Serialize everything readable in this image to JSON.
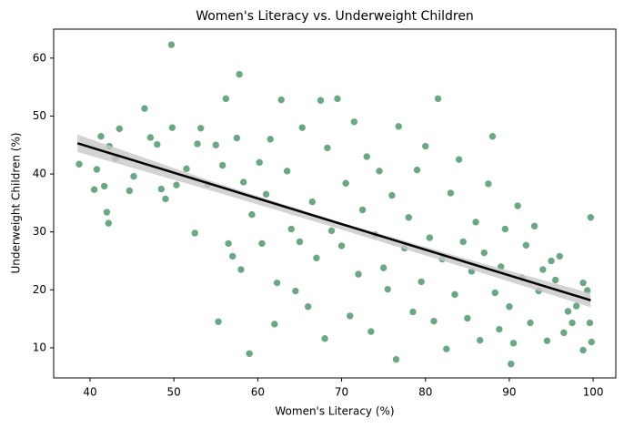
{
  "chart_data": {
    "type": "scatter",
    "title": "Women's Literacy vs. Underweight Children",
    "x_label": "Women's Literacy (%)",
    "y_label": "Underweight Children (%)",
    "color": "#5a9e75",
    "x": [
      38.7,
      40.5,
      40.8,
      41.3,
      41.7,
      42.0,
      42.2,
      42.3,
      43.0,
      43.5,
      44.7,
      45.2,
      46.5,
      47.2,
      48.0,
      48.5,
      49.0,
      49.7,
      49.8,
      50.3,
      51.5,
      52.5,
      52.8,
      53.2,
      54.0,
      55.0,
      55.3,
      55.8,
      56.2,
      56.5,
      57.0,
      57.5,
      57.8,
      58.0,
      58.3,
      59.0,
      59.3,
      60.2,
      60.5,
      61.0,
      61.5,
      62.0,
      62.3,
      62.8,
      63.5,
      64.0,
      64.5,
      65.0,
      65.3,
      66.0,
      66.5,
      67.0,
      67.5,
      68.0,
      68.3,
      68.8,
      69.5,
      70.0,
      70.5,
      71.0,
      71.5,
      72.0,
      72.5,
      73.0,
      73.5,
      74.0,
      74.5,
      75.0,
      75.5,
      76.0,
      76.5,
      76.8,
      77.5,
      78.0,
      78.5,
      79.0,
      79.5,
      80.0,
      80.5,
      81.0,
      81.5,
      82.0,
      82.5,
      83.0,
      83.5,
      84.0,
      84.5,
      85.0,
      85.5,
      86.0,
      86.5,
      87.0,
      87.5,
      88.0,
      88.3,
      88.8,
      89.0,
      89.5,
      90.0,
      90.2,
      90.5,
      91.0,
      91.5,
      92.0,
      92.5,
      93.0,
      93.5,
      94.0,
      94.5,
      95.0,
      95.5,
      96.0,
      96.5,
      97.0,
      97.5,
      98.0,
      98.8,
      98.8,
      99.3,
      99.6,
      99.7,
      99.8
    ],
    "values": [
      41.7,
      37.3,
      40.8,
      46.5,
      37.9,
      33.4,
      31.5,
      44.8,
      42.7,
      47.8,
      37.1,
      39.6,
      51.3,
      46.3,
      45.1,
      37.4,
      35.7,
      62.3,
      48.0,
      38.1,
      40.9,
      29.8,
      45.2,
      47.9,
      38.2,
      45.0,
      14.5,
      41.5,
      53.0,
      28.0,
      25.8,
      46.2,
      57.2,
      23.5,
      38.6,
      9.0,
      33.0,
      42.0,
      28.0,
      36.5,
      46.0,
      14.1,
      21.2,
      52.8,
      40.5,
      30.5,
      19.8,
      28.3,
      48.0,
      17.1,
      35.2,
      25.5,
      52.7,
      11.6,
      44.5,
      30.2,
      53.0,
      27.6,
      38.4,
      15.5,
      49.0,
      22.7,
      33.8,
      43.0,
      12.8,
      29.5,
      40.5,
      23.8,
      20.1,
      36.3,
      8.0,
      48.2,
      27.2,
      32.5,
      16.2,
      40.7,
      21.4,
      44.8,
      29.0,
      14.6,
      53.0,
      25.3,
      9.8,
      36.7,
      19.2,
      42.5,
      28.3,
      15.1,
      23.2,
      31.7,
      11.3,
      26.4,
      38.3,
      46.5,
      19.5,
      13.2,
      24.0,
      30.5,
      17.1,
      7.2,
      10.8,
      34.5,
      22.1,
      27.7,
      14.3,
      31.0,
      19.8,
      23.5,
      11.2,
      25.0,
      21.7,
      25.8,
      12.6,
      16.3,
      14.3,
      17.2,
      9.6,
      21.2,
      19.9,
      14.3,
      32.5,
      11.0
    ],
    "fit": {
      "x": [
        38.5,
        99.7
      ],
      "values": [
        45.3,
        18.2
      ],
      "color": "#000000"
    },
    "fit_band": {
      "x": [
        38.5,
        55,
        70,
        85,
        99.7
      ],
      "upper": [
        46.8,
        38.5,
        31.6,
        25.3,
        19.4
      ],
      "lower": [
        43.8,
        36.9,
        30.4,
        23.7,
        17.0
      ],
      "color": "#c8c8c8"
    },
    "xlim": [
      35.66,
      102.7
    ],
    "ylim": [
      4.8,
      65.0
    ],
    "xticks": [
      40,
      50,
      60,
      70,
      80,
      90,
      100
    ],
    "yticks": [
      10,
      20,
      30,
      40,
      50,
      60
    ]
  }
}
